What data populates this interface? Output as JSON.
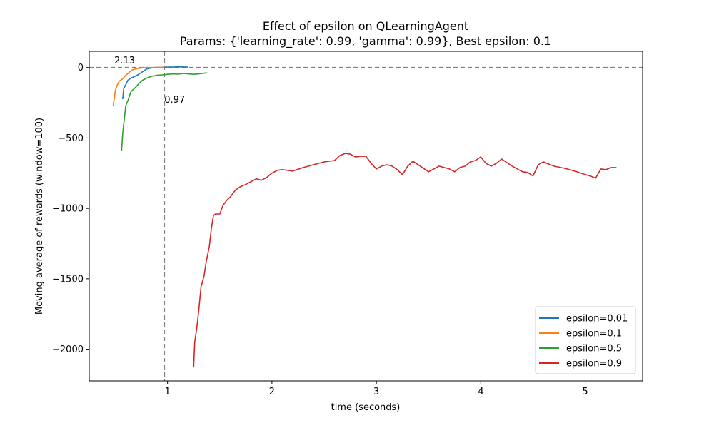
{
  "chart_data": {
    "type": "line",
    "title": "Effect of epsilon on QLearningAgent",
    "subtitle": "Params: {'learning_rate': 0.99, 'gamma': 0.99}, Best epsilon: 0.1",
    "xlabel": "time (seconds)",
    "ylabel": "Moving average of rewards (window=100)",
    "xlim": [
      0.25,
      5.55
    ],
    "ylim": [
      -2225,
      115
    ],
    "xticks": [
      1,
      2,
      3,
      4,
      5
    ],
    "yticks": [
      0,
      -500,
      -1000,
      -1500,
      -2000
    ],
    "grid": false,
    "legend_position": "lower-right",
    "reference_lines": {
      "horizontal_y": 0,
      "vertical_x": 0.97
    },
    "annotations": [
      {
        "text": "2.13",
        "x": 0.49,
        "y": 30
      },
      {
        "text": "0.97",
        "x": 0.97,
        "y": -250
      }
    ],
    "series": [
      {
        "name": "epsilon=0.01",
        "color": "#1f77b4",
        "points": [
          [
            0.57,
            -225
          ],
          [
            0.58,
            -150
          ],
          [
            0.6,
            -120
          ],
          [
            0.62,
            -90
          ],
          [
            0.65,
            -75
          ],
          [
            0.68,
            -65
          ],
          [
            0.72,
            -50
          ],
          [
            0.75,
            -35
          ],
          [
            0.78,
            -20
          ],
          [
            0.8,
            -10
          ],
          [
            0.83,
            -5
          ],
          [
            0.88,
            0
          ],
          [
            0.95,
            2
          ],
          [
            1.0,
            3
          ],
          [
            1.05,
            3
          ],
          [
            1.1,
            5
          ],
          [
            1.15,
            4
          ],
          [
            1.2,
            3
          ]
        ]
      },
      {
        "name": "epsilon=0.1",
        "color": "#ff7f0e",
        "points": [
          [
            0.48,
            -270
          ],
          [
            0.49,
            -220
          ],
          [
            0.5,
            -160
          ],
          [
            0.52,
            -120
          ],
          [
            0.54,
            -95
          ],
          [
            0.57,
            -80
          ],
          [
            0.6,
            -55
          ],
          [
            0.63,
            -35
          ],
          [
            0.66,
            -18
          ],
          [
            0.7,
            -8
          ],
          [
            0.75,
            -3
          ],
          [
            0.8,
            0
          ],
          [
            0.85,
            0
          ],
          [
            0.9,
            1
          ],
          [
            0.97,
            2
          ]
        ]
      },
      {
        "name": "epsilon=0.5",
        "color": "#2ca02c",
        "points": [
          [
            0.56,
            -590
          ],
          [
            0.57,
            -470
          ],
          [
            0.58,
            -400
          ],
          [
            0.6,
            -270
          ],
          [
            0.62,
            -235
          ],
          [
            0.65,
            -170
          ],
          [
            0.68,
            -150
          ],
          [
            0.7,
            -135
          ],
          [
            0.73,
            -110
          ],
          [
            0.76,
            -90
          ],
          [
            0.8,
            -75
          ],
          [
            0.85,
            -62
          ],
          [
            0.9,
            -55
          ],
          [
            0.95,
            -52
          ],
          [
            1.0,
            -48
          ],
          [
            1.05,
            -45
          ],
          [
            1.1,
            -47
          ],
          [
            1.15,
            -42
          ],
          [
            1.2,
            -45
          ],
          [
            1.25,
            -48
          ],
          [
            1.3,
            -45
          ],
          [
            1.35,
            -40
          ],
          [
            1.38,
            -38
          ]
        ]
      },
      {
        "name": "epsilon=0.9",
        "color": "#d62728",
        "points": [
          [
            1.25,
            -2130
          ],
          [
            1.26,
            -1950
          ],
          [
            1.28,
            -1850
          ],
          [
            1.3,
            -1720
          ],
          [
            1.32,
            -1560
          ],
          [
            1.35,
            -1480
          ],
          [
            1.37,
            -1380
          ],
          [
            1.4,
            -1270
          ],
          [
            1.42,
            -1140
          ],
          [
            1.44,
            -1050
          ],
          [
            1.46,
            -1040
          ],
          [
            1.5,
            -1040
          ],
          [
            1.53,
            -980
          ],
          [
            1.57,
            -940
          ],
          [
            1.6,
            -920
          ],
          [
            1.65,
            -870
          ],
          [
            1.7,
            -845
          ],
          [
            1.75,
            -830
          ],
          [
            1.8,
            -810
          ],
          [
            1.85,
            -790
          ],
          [
            1.9,
            -800
          ],
          [
            1.95,
            -780
          ],
          [
            2.0,
            -750
          ],
          [
            2.05,
            -730
          ],
          [
            2.1,
            -725
          ],
          [
            2.2,
            -735
          ],
          [
            2.3,
            -710
          ],
          [
            2.4,
            -690
          ],
          [
            2.5,
            -670
          ],
          [
            2.6,
            -660
          ],
          [
            2.65,
            -625
          ],
          [
            2.7,
            -610
          ],
          [
            2.75,
            -615
          ],
          [
            2.8,
            -635
          ],
          [
            2.85,
            -630
          ],
          [
            2.9,
            -630
          ],
          [
            2.95,
            -680
          ],
          [
            3.0,
            -720
          ],
          [
            3.05,
            -700
          ],
          [
            3.1,
            -690
          ],
          [
            3.15,
            -700
          ],
          [
            3.2,
            -725
          ],
          [
            3.25,
            -760
          ],
          [
            3.3,
            -700
          ],
          [
            3.35,
            -665
          ],
          [
            3.4,
            -690
          ],
          [
            3.5,
            -740
          ],
          [
            3.55,
            -720
          ],
          [
            3.6,
            -700
          ],
          [
            3.7,
            -720
          ],
          [
            3.75,
            -740
          ],
          [
            3.8,
            -710
          ],
          [
            3.85,
            -700
          ],
          [
            3.9,
            -670
          ],
          [
            3.95,
            -660
          ],
          [
            4.0,
            -635
          ],
          [
            4.05,
            -680
          ],
          [
            4.1,
            -700
          ],
          [
            4.15,
            -680
          ],
          [
            4.2,
            -650
          ],
          [
            4.3,
            -700
          ],
          [
            4.4,
            -740
          ],
          [
            4.45,
            -745
          ],
          [
            4.5,
            -770
          ],
          [
            4.55,
            -690
          ],
          [
            4.6,
            -670
          ],
          [
            4.7,
            -700
          ],
          [
            4.8,
            -715
          ],
          [
            4.9,
            -735
          ],
          [
            5.0,
            -760
          ],
          [
            5.05,
            -770
          ],
          [
            5.1,
            -785
          ],
          [
            5.15,
            -720
          ],
          [
            5.2,
            -725
          ],
          [
            5.25,
            -710
          ],
          [
            5.3,
            -710
          ]
        ]
      }
    ]
  }
}
